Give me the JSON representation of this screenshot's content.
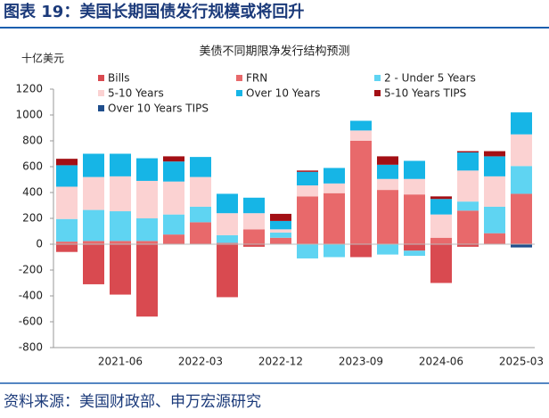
{
  "header": {
    "title": "图表 19：美国长期国债发行规模或将回升"
  },
  "footer": {
    "source": "资料来源：美国财政部、申万宏源研究"
  },
  "chart_data": {
    "type": "stacked_bar",
    "title": "美债不同期限净发行结构预测",
    "y_label": "十亿美元",
    "categories": [
      null,
      null,
      "2021-06",
      null,
      null,
      "2022-03",
      null,
      null,
      "2022-12",
      null,
      null,
      "2023-09",
      null,
      null,
      "2024-06",
      null,
      null,
      "2025-03"
    ],
    "series": [
      {
        "name": "Bills",
        "color": "#d94a50",
        "values": [
          -60,
          -310,
          -390,
          -560,
          0,
          0,
          -410,
          -20,
          0,
          0,
          0,
          -100,
          0,
          -50,
          -300,
          -20,
          0,
          0
        ]
      },
      {
        "name": "FRN",
        "color": "#e8696b",
        "values": [
          20,
          25,
          25,
          25,
          75,
          170,
          10,
          115,
          50,
          370,
          395,
          800,
          420,
          385,
          50,
          260,
          85,
          390
        ]
      },
      {
        "name": "2 - Under 5 Years",
        "color": "#5fd4f2",
        "values": [
          175,
          240,
          230,
          175,
          155,
          120,
          60,
          0,
          40,
          -110,
          -100,
          0,
          -80,
          -40,
          0,
          70,
          205,
          215
        ]
      },
      {
        "name": "5-10 Years",
        "color": "#fbd2d2",
        "values": [
          250,
          255,
          270,
          290,
          255,
          230,
          170,
          125,
          25,
          85,
          75,
          80,
          85,
          120,
          180,
          240,
          235,
          245
        ]
      },
      {
        "name": "Over 10 Years",
        "color": "#16b5e6",
        "values": [
          166,
          180,
          175,
          175,
          155,
          155,
          150,
          120,
          65,
          105,
          120,
          75,
          110,
          140,
          120,
          140,
          155,
          170
        ]
      },
      {
        "name": "5-10 Years TIPS",
        "color": "#a30f14",
        "values": [
          50,
          0,
          0,
          0,
          40,
          0,
          0,
          0,
          55,
          10,
          0,
          0,
          65,
          0,
          20,
          10,
          40,
          0
        ]
      },
      {
        "name": "Over 10 Years TIPS",
        "color": "#1f4e8c",
        "values": [
          0,
          0,
          0,
          0,
          0,
          0,
          0,
          0,
          0,
          0,
          0,
          0,
          0,
          0,
          0,
          0,
          0,
          -25
        ]
      }
    ],
    "ylim": [
      -800,
      1200
    ],
    "yticks": [
      -800,
      -600,
      -400,
      -200,
      0,
      200,
      400,
      600,
      800,
      1000,
      1200
    ]
  }
}
